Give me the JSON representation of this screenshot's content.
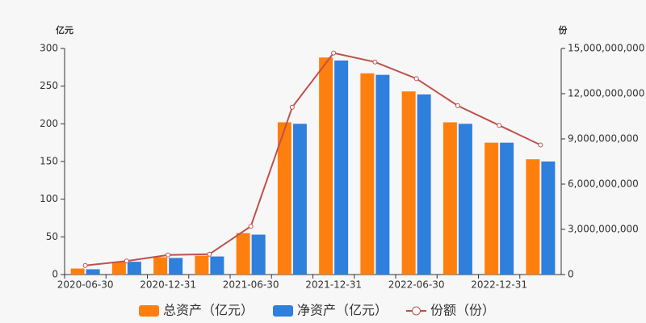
{
  "chart_data": {
    "type": "bar-line",
    "y_label": "亿元",
    "y2_label": "份",
    "categories": [
      "2020-06-30",
      null,
      "2020-12-31",
      null,
      "2021-06-30",
      null,
      "2021-12-31",
      null,
      "2022-06-30",
      null,
      "2022-12-31",
      null
    ],
    "ylim": [
      0,
      300
    ],
    "yticks": [
      0,
      50,
      100,
      150,
      200,
      250,
      300
    ],
    "y2lim": [
      0,
      15000000000
    ],
    "y2ticks": [
      0,
      {
        "value": 3000000000,
        "label": "3,000,000,000"
      },
      {
        "value": 6000000000,
        "label": "6,000,000,000"
      },
      {
        "value": 9000000000,
        "label": "9,000,000,000"
      },
      {
        "value": 12000000000,
        "label": "12,000,000,000"
      },
      {
        "value": 15000000000,
        "label": "15,000,000,000"
      }
    ],
    "series": [
      {
        "name": "总资产（亿元）",
        "color": "#ff7f0e",
        "type": "bar",
        "values": [
          8,
          17,
          23,
          25,
          55,
          202,
          288,
          267,
          243,
          202,
          175,
          153
        ]
      },
      {
        "name": "净资产（亿元）",
        "color": "#2f7fdd",
        "type": "bar",
        "values": [
          7,
          17,
          22,
          24,
          53,
          200,
          284,
          265,
          239,
          200,
          175,
          150
        ]
      },
      {
        "name": "份额（份）",
        "color": "#c0504d",
        "type": "line",
        "axis": "y2",
        "values": [
          600000000,
          900000000,
          1300000000,
          1350000000,
          3200000000,
          11100000000,
          14700000000,
          14100000000,
          13000000000,
          11200000000,
          9900000000,
          8600000000
        ]
      }
    ]
  }
}
